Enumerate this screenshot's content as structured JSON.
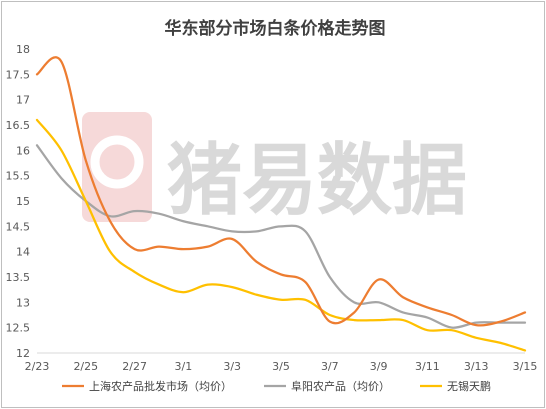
{
  "chart_data": {
    "type": "line",
    "title": "华东部分市场白条价格走势图",
    "xlabel": "",
    "ylabel": "",
    "ylim": [
      12,
      18
    ],
    "yticks": [
      "12",
      "12.5",
      "13",
      "13.5",
      "14",
      "14.5",
      "15",
      "15.5",
      "16",
      "16.5",
      "17",
      "17.5",
      "18"
    ],
    "x": [
      "2/23",
      "2/24",
      "2/25",
      "2/26",
      "2/27",
      "2/28",
      "3/1",
      "3/2",
      "3/3",
      "3/4",
      "3/5",
      "3/6",
      "3/7",
      "3/8",
      "3/9",
      "3/10",
      "3/11",
      "3/12",
      "3/13",
      "3/14",
      "3/15"
    ],
    "xtick_labels": [
      "2/23",
      "2/25",
      "2/27",
      "3/1",
      "3/3",
      "3/5",
      "3/7",
      "3/9",
      "3/11",
      "3/13",
      "3/15"
    ],
    "grid": false,
    "legend_position": "bottom",
    "series": [
      {
        "name": "上海农产品批发市场（均价）",
        "color": "#ED7D31",
        "values": [
          17.5,
          17.75,
          15.8,
          14.6,
          14.05,
          14.1,
          14.05,
          14.1,
          14.25,
          13.8,
          13.55,
          13.4,
          12.62,
          12.8,
          13.45,
          13.1,
          12.9,
          12.75,
          12.55,
          12.62,
          12.8
        ]
      },
      {
        "name": "阜阳农产品（均价）",
        "color": "#A5A5A5",
        "values": [
          16.1,
          15.45,
          15.0,
          14.7,
          14.8,
          14.75,
          14.6,
          14.5,
          14.4,
          14.4,
          14.5,
          14.4,
          13.5,
          13.0,
          13.0,
          12.8,
          12.7,
          12.5,
          12.6,
          12.6,
          12.6
        ]
      },
      {
        "name": "无锡天鹏",
        "color": "#FFC000",
        "values": [
          16.6,
          16.0,
          15.0,
          14.0,
          13.6,
          13.35,
          13.2,
          13.35,
          13.3,
          13.15,
          13.05,
          13.05,
          12.75,
          12.65,
          12.65,
          12.65,
          12.45,
          12.45,
          12.3,
          12.2,
          12.05
        ]
      }
    ]
  },
  "watermark": {
    "text": "猪易数据"
  }
}
